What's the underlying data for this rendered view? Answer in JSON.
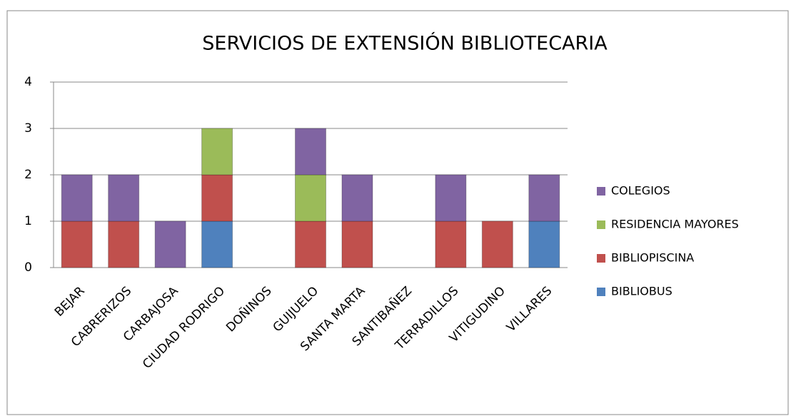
{
  "chart_data": {
    "type": "stacked_bar",
    "title": "SERVICIOS DE EXTENSIÓN BIBLIOTECARIA",
    "categories": [
      "BEJAR",
      "CABRERIZOS",
      "CARBAJOSA",
      "CIUDAD RODRIGO",
      "DOÑINOS",
      "GUIJUELO",
      "SANTA MARTA",
      "SANTIBAÑEZ",
      "TERRADILLOS",
      "VITIGUDINO",
      "VILLARES"
    ],
    "series": [
      {
        "name": "BIBLIOBUS",
        "color": "#4f81bd",
        "values": [
          0,
          0,
          0,
          1,
          0,
          0,
          0,
          0,
          0,
          0,
          1
        ]
      },
      {
        "name": "BIBLIOPISCINA",
        "color": "#c0504d",
        "values": [
          1,
          1,
          0,
          1,
          0,
          1,
          1,
          0,
          1,
          1,
          0
        ]
      },
      {
        "name": "RESIDENCIA MAYORES",
        "color": "#9bbb59",
        "values": [
          0,
          0,
          0,
          1,
          0,
          1,
          0,
          0,
          0,
          0,
          0
        ]
      },
      {
        "name": "COLEGIOS",
        "color": "#8064a2",
        "values": [
          1,
          1,
          1,
          0,
          0,
          1,
          1,
          0,
          1,
          0,
          1
        ]
      }
    ],
    "ylim": [
      0,
      4
    ],
    "yticks": [
      0,
      1,
      2,
      3,
      4
    ],
    "grid": true,
    "legend": "right"
  }
}
